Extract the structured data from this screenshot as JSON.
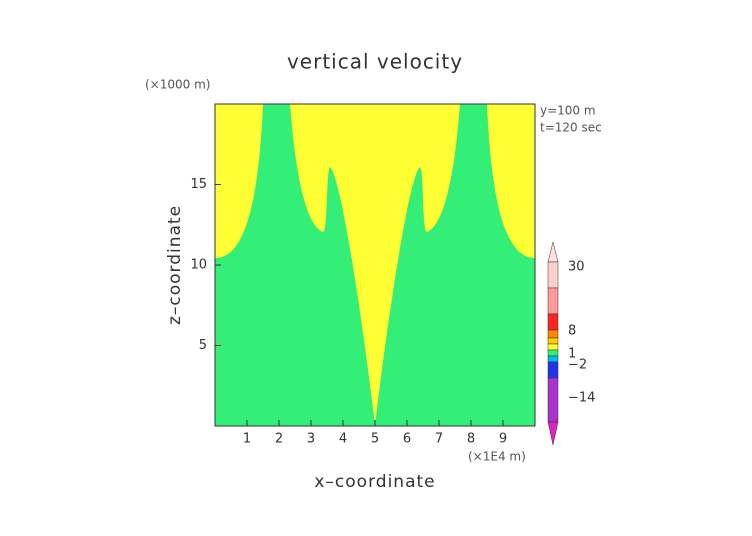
{
  "chart_data": {
    "type": "contour",
    "title": "vertical velocity",
    "xlabel": "x–coordinate",
    "ylabel": "z–coordinate",
    "xunit": "(×1E4 m)",
    "yunit": "(×1000 m)",
    "annotations": [
      "y=100 m",
      "t=120 sec"
    ],
    "xlim": [
      0,
      10
    ],
    "xticks": [
      1,
      2,
      3,
      4,
      5,
      6,
      7,
      8,
      9
    ],
    "ylim": [
      0,
      20
    ],
    "yticks": [
      5,
      10,
      15
    ],
    "colorbar_ticks": [
      30,
      8,
      1,
      {
        "value": -2,
        "label": "−2"
      },
      {
        "value": -14,
        "label": "−14"
      }
    ],
    "colors": [
      "#ffff33",
      "#33ee77"
    ]
  }
}
